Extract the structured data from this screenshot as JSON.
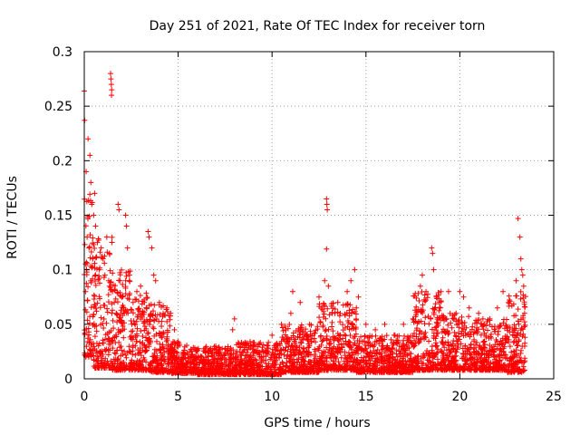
{
  "chart_data": {
    "type": "scatter",
    "title": "Day 251 of 2021, Rate Of TEC Index for receiver torn",
    "xlabel": "GPS time / hours",
    "ylabel": "ROTI / TECUs",
    "xlim": [
      0,
      25
    ],
    "ylim": [
      0,
      0.3
    ],
    "x_ticks": [
      0,
      5,
      10,
      15,
      20,
      25
    ],
    "x_tick_labels": [
      "0",
      "5",
      "10",
      "15",
      "20",
      "25"
    ],
    "y_ticks": [
      0,
      0.05,
      0.1,
      0.15,
      0.2,
      0.25,
      0.3
    ],
    "y_tick_labels": [
      "0",
      "0.05",
      "0.1",
      "0.15",
      "0.2",
      "0.25",
      "0.3"
    ],
    "grid": true,
    "legend": "none",
    "marker": "plus",
    "color": "#ff0000",
    "series": [
      {
        "points": [
          [
            0.0,
            0.264
          ],
          [
            0.02,
            0.237
          ],
          [
            0.1,
            0.19
          ],
          [
            0.2,
            0.22
          ],
          [
            0.3,
            0.205
          ],
          [
            0.35,
            0.18
          ],
          [
            0.4,
            0.16
          ],
          [
            0.5,
            0.15
          ],
          [
            0.55,
            0.17
          ],
          [
            0.6,
            0.14
          ],
          [
            0.15,
            0.13
          ],
          [
            0.25,
            0.12
          ],
          [
            0.45,
            0.11
          ],
          [
            0.7,
            0.125
          ],
          [
            0.8,
            0.1
          ],
          [
            0.9,
            0.12
          ],
          [
            1.0,
            0.11
          ],
          [
            1.1,
            0.095
          ],
          [
            1.2,
            0.13
          ],
          [
            1.3,
            0.09
          ],
          [
            1.4,
            0.28
          ],
          [
            1.42,
            0.275
          ],
          [
            1.44,
            0.27
          ],
          [
            1.46,
            0.265
          ],
          [
            1.45,
            0.26
          ],
          [
            1.5,
            0.08
          ],
          [
            1.6,
            0.07
          ],
          [
            1.7,
            0.06
          ],
          [
            1.8,
            0.16
          ],
          [
            1.85,
            0.155
          ],
          [
            1.9,
            0.09
          ],
          [
            2.0,
            0.075
          ],
          [
            2.1,
            0.065
          ],
          [
            2.2,
            0.15
          ],
          [
            2.25,
            0.14
          ],
          [
            2.3,
            0.12
          ],
          [
            2.4,
            0.09
          ],
          [
            2.6,
            0.07
          ],
          [
            2.8,
            0.08
          ],
          [
            3.0,
            0.085
          ],
          [
            3.2,
            0.07
          ],
          [
            3.4,
            0.135
          ],
          [
            3.45,
            0.13
          ],
          [
            3.6,
            0.12
          ],
          [
            3.7,
            0.095
          ],
          [
            3.8,
            0.09
          ],
          [
            4.0,
            0.07
          ],
          [
            4.2,
            0.06
          ],
          [
            4.4,
            0.065
          ],
          [
            4.6,
            0.06
          ],
          [
            4.8,
            0.045
          ],
          [
            5.0,
            0.03
          ],
          [
            6.0,
            0.025
          ],
          [
            7.0,
            0.03
          ],
          [
            7.9,
            0.045
          ],
          [
            8.0,
            0.055
          ],
          [
            9.0,
            0.03
          ],
          [
            10.0,
            0.04
          ],
          [
            10.5,
            0.05
          ],
          [
            11.0,
            0.06
          ],
          [
            11.1,
            0.08
          ],
          [
            11.5,
            0.07
          ],
          [
            12.0,
            0.05
          ],
          [
            12.5,
            0.075
          ],
          [
            12.8,
            0.09
          ],
          [
            12.9,
            0.165
          ],
          [
            12.92,
            0.16
          ],
          [
            12.94,
            0.155
          ],
          [
            12.9,
            0.119
          ],
          [
            13.0,
            0.085
          ],
          [
            13.2,
            0.06
          ],
          [
            13.5,
            0.07
          ],
          [
            14.0,
            0.08
          ],
          [
            14.2,
            0.09
          ],
          [
            14.4,
            0.1
          ],
          [
            14.6,
            0.075
          ],
          [
            15.0,
            0.05
          ],
          [
            15.5,
            0.045
          ],
          [
            16.0,
            0.05
          ],
          [
            16.5,
            0.04
          ],
          [
            17.0,
            0.05
          ],
          [
            17.5,
            0.055
          ],
          [
            17.9,
            0.085
          ],
          [
            18.0,
            0.095
          ],
          [
            18.2,
            0.08
          ],
          [
            18.5,
            0.12
          ],
          [
            18.55,
            0.115
          ],
          [
            18.6,
            0.1
          ],
          [
            18.9,
            0.07
          ],
          [
            19.0,
            0.08
          ],
          [
            19.4,
            0.08
          ],
          [
            19.8,
            0.06
          ],
          [
            20.0,
            0.08
          ],
          [
            20.2,
            0.075
          ],
          [
            20.5,
            0.065
          ],
          [
            21.0,
            0.06
          ],
          [
            21.3,
            0.05
          ],
          [
            21.6,
            0.055
          ],
          [
            22.0,
            0.065
          ],
          [
            22.3,
            0.08
          ],
          [
            22.6,
            0.07
          ],
          [
            23.0,
            0.09
          ],
          [
            23.1,
            0.147
          ],
          [
            23.2,
            0.13
          ],
          [
            23.25,
            0.11
          ],
          [
            23.3,
            0.1
          ],
          [
            23.35,
            0.095
          ],
          [
            23.4,
            0.085
          ],
          [
            23.45,
            0.06
          ]
        ]
      }
    ],
    "noise_bands": [
      [
        0.0,
        0.5,
        0.02,
        0.17
      ],
      [
        0.5,
        1.5,
        0.01,
        0.13
      ],
      [
        1.5,
        2.5,
        0.008,
        0.1
      ],
      [
        2.5,
        3.5,
        0.008,
        0.08
      ],
      [
        3.5,
        4.6,
        0.006,
        0.07
      ],
      [
        4.6,
        6.0,
        0.005,
        0.035
      ],
      [
        6.0,
        8.0,
        0.004,
        0.03
      ],
      [
        8.0,
        10.5,
        0.004,
        0.035
      ],
      [
        10.5,
        12.5,
        0.006,
        0.05
      ],
      [
        12.5,
        14.5,
        0.008,
        0.07
      ],
      [
        14.5,
        17.5,
        0.006,
        0.04
      ],
      [
        17.5,
        19.0,
        0.008,
        0.08
      ],
      [
        19.0,
        20.5,
        0.008,
        0.06
      ],
      [
        20.5,
        22.5,
        0.008,
        0.055
      ],
      [
        22.5,
        23.5,
        0.006,
        0.08
      ]
    ]
  }
}
